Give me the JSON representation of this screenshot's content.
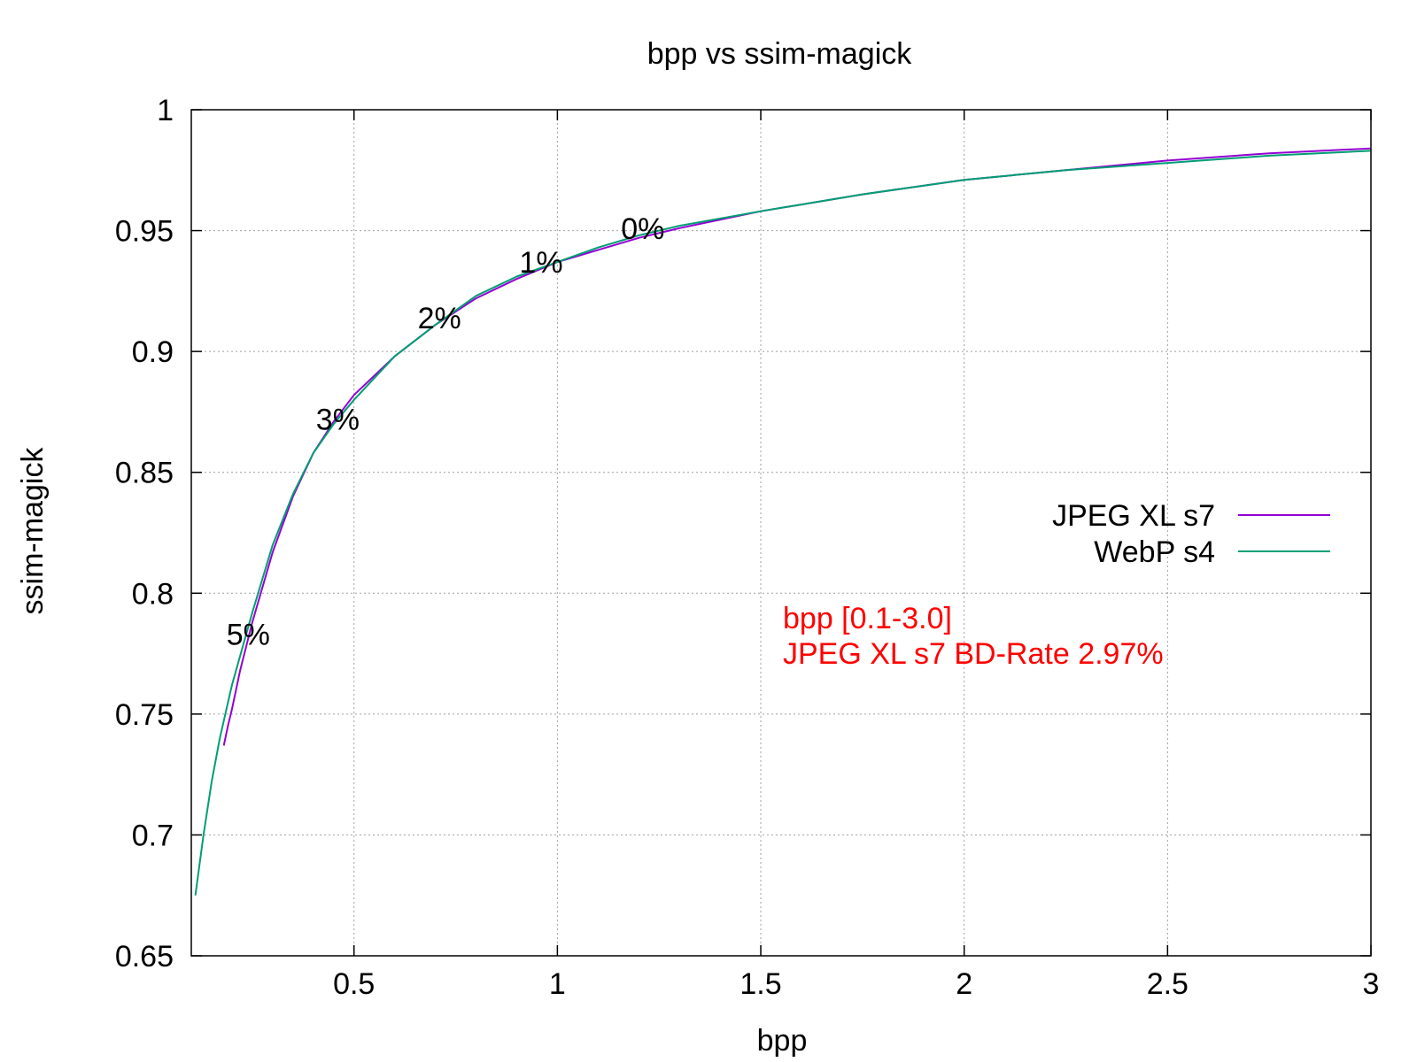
{
  "chart_data": {
    "type": "line",
    "title": "bpp vs ssim-magick",
    "xlabel": "bpp",
    "ylabel": "ssim-magick",
    "xlim": [
      0.1,
      3.0
    ],
    "ylim": [
      0.65,
      1.0
    ],
    "xticks": [
      0.5,
      1,
      1.5,
      2,
      2.5,
      3
    ],
    "xtick_labels": [
      "0.5",
      "1",
      "1.5",
      "2",
      "2.5",
      "3"
    ],
    "yticks": [
      0.65,
      0.7,
      0.75,
      0.8,
      0.85,
      0.9,
      0.95,
      1.0
    ],
    "ytick_labels": [
      "0.65",
      "0.7",
      "0.75",
      "0.8",
      "0.85",
      "0.9",
      "0.95",
      "1"
    ],
    "grid": true,
    "legend_position": "right",
    "series": [
      {
        "name": "JPEG XL s7",
        "color": "#9400d3",
        "x": [
          0.18,
          0.19,
          0.2,
          0.22,
          0.25,
          0.3,
          0.35,
          0.4,
          0.45,
          0.5,
          0.6,
          0.7,
          0.8,
          0.9,
          1.0,
          1.1,
          1.2,
          1.3,
          1.5,
          1.75,
          2.0,
          2.25,
          2.5,
          2.75,
          3.0
        ],
        "y": [
          0.737,
          0.745,
          0.752,
          0.768,
          0.788,
          0.817,
          0.84,
          0.858,
          0.871,
          0.882,
          0.898,
          0.911,
          0.922,
          0.93,
          0.937,
          0.942,
          0.947,
          0.951,
          0.958,
          0.965,
          0.971,
          0.975,
          0.979,
          0.982,
          0.984
        ]
      },
      {
        "name": "WebP s4",
        "color": "#009e73",
        "x": [
          0.11,
          0.13,
          0.15,
          0.17,
          0.2,
          0.25,
          0.3,
          0.35,
          0.4,
          0.45,
          0.5,
          0.6,
          0.7,
          0.8,
          0.9,
          1.0,
          1.1,
          1.2,
          1.3,
          1.5,
          1.75,
          2.0,
          2.25,
          2.5,
          2.75,
          3.0
        ],
        "y": [
          0.675,
          0.7,
          0.722,
          0.74,
          0.762,
          0.792,
          0.82,
          0.841,
          0.858,
          0.87,
          0.88,
          0.898,
          0.911,
          0.923,
          0.931,
          0.937,
          0.943,
          0.948,
          0.952,
          0.958,
          0.965,
          0.971,
          0.975,
          0.978,
          0.981,
          0.983
        ]
      }
    ],
    "point_labels": [
      {
        "text": "5%",
        "x": 0.24,
        "y": 0.783
      },
      {
        "text": "3%",
        "x": 0.46,
        "y": 0.872
      },
      {
        "text": "2%",
        "x": 0.71,
        "y": 0.914
      },
      {
        "text": "1%",
        "x": 0.96,
        "y": 0.937
      },
      {
        "text": "0%",
        "x": 1.21,
        "y": 0.951
      }
    ],
    "annotations": [
      "bpp [0.1-3.0]",
      "JPEG XL s7 BD-Rate 2.97%"
    ]
  }
}
